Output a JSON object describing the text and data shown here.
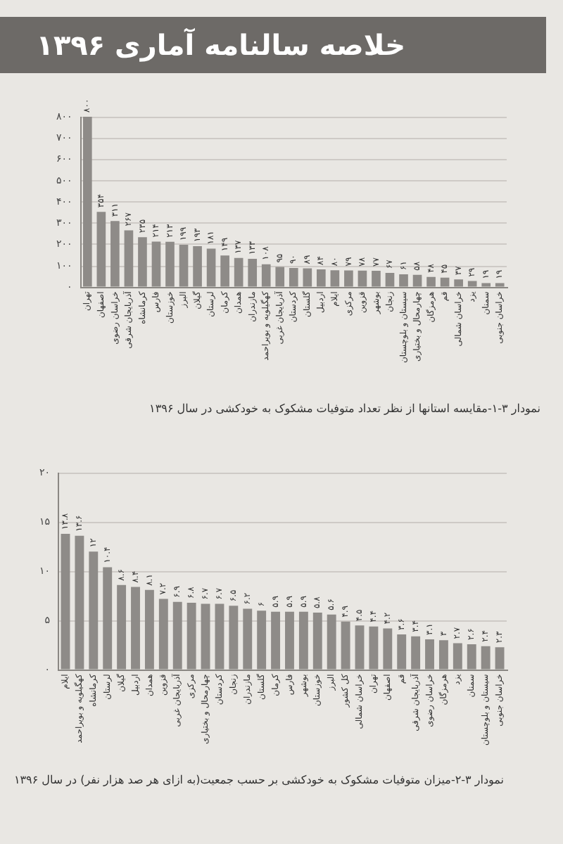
{
  "chart_data": [
    {
      "type": "bar",
      "title": "خلاصه سالنامه آماری ۱۳۹۶",
      "categories": [
        "تهران",
        "اصفهان",
        "خراسان رضوی",
        "آذربایجان شرقی",
        "کرمانشاه",
        "فارس",
        "خوزستان",
        "البرز",
        "گیلان",
        "لرستان",
        "کرمان",
        "همدان",
        "مازندران",
        "کهگیلویه و بویراحمد",
        "آذربایجان غربی",
        "کردستان",
        "گلستان",
        "اردبیل",
        "ایلام",
        "مرکزی",
        "قزوین",
        "بوشهر",
        "زنجان",
        "سیستان و بلوچستان",
        "چهارمحال و بختیاری",
        "هرمزگان",
        "قم",
        "خراسان شمالی",
        "یزد",
        "سمنان",
        "خراسان جنوبی"
      ],
      "values": [
        800,
        354,
        311,
        267,
        235,
        214,
        213,
        199,
        193,
        181,
        149,
        137,
        133,
        108,
        95,
        90,
        89,
        84,
        80,
        79,
        78,
        77,
        67,
        61,
        58,
        48,
        45,
        37,
        29,
        19,
        19
      ],
      "value_labels": [
        "۸۰۰",
        "۳۵۴",
        "۳۱۱",
        "۲۶۷",
        "۲۳۵",
        "۲۱۴",
        "۲۱۳",
        "۱۹۹",
        "۱۹۳",
        "۱۸۱",
        "۱۴۹",
        "۱۳۷",
        "۱۳۳",
        "۱۰۸",
        "۹۵",
        "۹۰",
        "۸۹",
        "۸۴",
        "۸۰",
        "۷۹",
        "۷۸",
        "۷۷",
        "۶۷",
        "۶۱",
        "۵۸",
        "۴۸",
        "۴۵",
        "۳۷",
        "۲۹",
        "۱۹",
        "۱۹"
      ],
      "color": "#8e8b88",
      "ylim": [
        0,
        800
      ],
      "yticks": [
        {
          "value": 0,
          "label": "۰"
        },
        {
          "value": 100,
          "label": "۱۰۰"
        },
        {
          "value": 200,
          "label": "۲۰۰"
        },
        {
          "value": 300,
          "label": "۳۰۰"
        },
        {
          "value": 400,
          "label": "۴۰۰"
        },
        {
          "value": 500,
          "label": "۵۰۰"
        },
        {
          "value": 600,
          "label": "۶۰۰"
        },
        {
          "value": 700,
          "label": "۷۰۰"
        },
        {
          "value": 800,
          "label": "۸۰۰"
        }
      ],
      "grid": "y",
      "annotations": [
        "نمودار ۳-۱-مقایسه استانها از نظر تعداد متوفیات مشکوک به خودکشی در سال ۱۳۹۶"
      ]
    },
    {
      "type": "bar",
      "categories": [
        "ایلام",
        "کهگیلویه و بویراحمد",
        "کرمانشاه",
        "لرستان",
        "گیلان",
        "اردبیل",
        "همدان",
        "قزوین",
        "آذربایجان غربی",
        "مرکزی",
        "چهارمحال و بختیاری",
        "کردستان",
        "زنجان",
        "مازندران",
        "گلستان",
        "کرمان",
        "فارس",
        "بوشهر",
        "خوزستان",
        "البرز",
        "کل کشور",
        "خراسان شمالی",
        "تهران",
        "اصفهان",
        "قم",
        "آذربایجان شرقی",
        "خراسان رضوی",
        "هرمزگان",
        "یزد",
        "سمنان",
        "سیستان و بلوچستان",
        "خراسان جنوبی"
      ],
      "values": [
        13.8,
        13.6,
        12,
        10.4,
        8.6,
        8.4,
        8.1,
        7.2,
        6.9,
        6.8,
        6.7,
        6.7,
        6.5,
        6.2,
        6,
        5.9,
        5.9,
        5.9,
        5.8,
        5.6,
        4.9,
        4.5,
        4.4,
        4.2,
        3.6,
        3.4,
        3.1,
        3,
        2.7,
        2.6,
        2.4,
        2.3
      ],
      "value_labels": [
        "۱۳.۸",
        "۱۳.۶",
        "۱۲",
        "۱۰.۴",
        "۸.۶",
        "۸.۴",
        "۸.۱",
        "۷.۲",
        "۶.۹",
        "۶.۸",
        "۶.۷",
        "۶.۷",
        "۶.۵",
        "۶.۲",
        "۶",
        "۵.۹",
        "۵.۹",
        "۵.۹",
        "۵.۸",
        "۵.۶",
        "۴.۹",
        "۴.۵",
        "۴.۴",
        "۴.۲",
        "۳.۶",
        "۳.۴",
        "۳.۱",
        "۳",
        "۲.۷",
        "۲.۶",
        "۲.۴",
        "۲.۳"
      ],
      "color": "#8e8b88",
      "ylim": [
        0,
        20
      ],
      "yticks": [
        {
          "value": 0,
          "label": "۰"
        },
        {
          "value": 5,
          "label": "۵"
        },
        {
          "value": 10,
          "label": "۱۰"
        },
        {
          "value": 15,
          "label": "۱۵"
        },
        {
          "value": 20,
          "label": "۲۰"
        }
      ],
      "grid": "y",
      "annotations": [
        "نمودار ۳-۲-میزان متوفیات مشکوک به خودکشی بر حسب جمعیت(به ازای هر صد هزار نفر) در سال ۱۳۹۶"
      ]
    }
  ]
}
